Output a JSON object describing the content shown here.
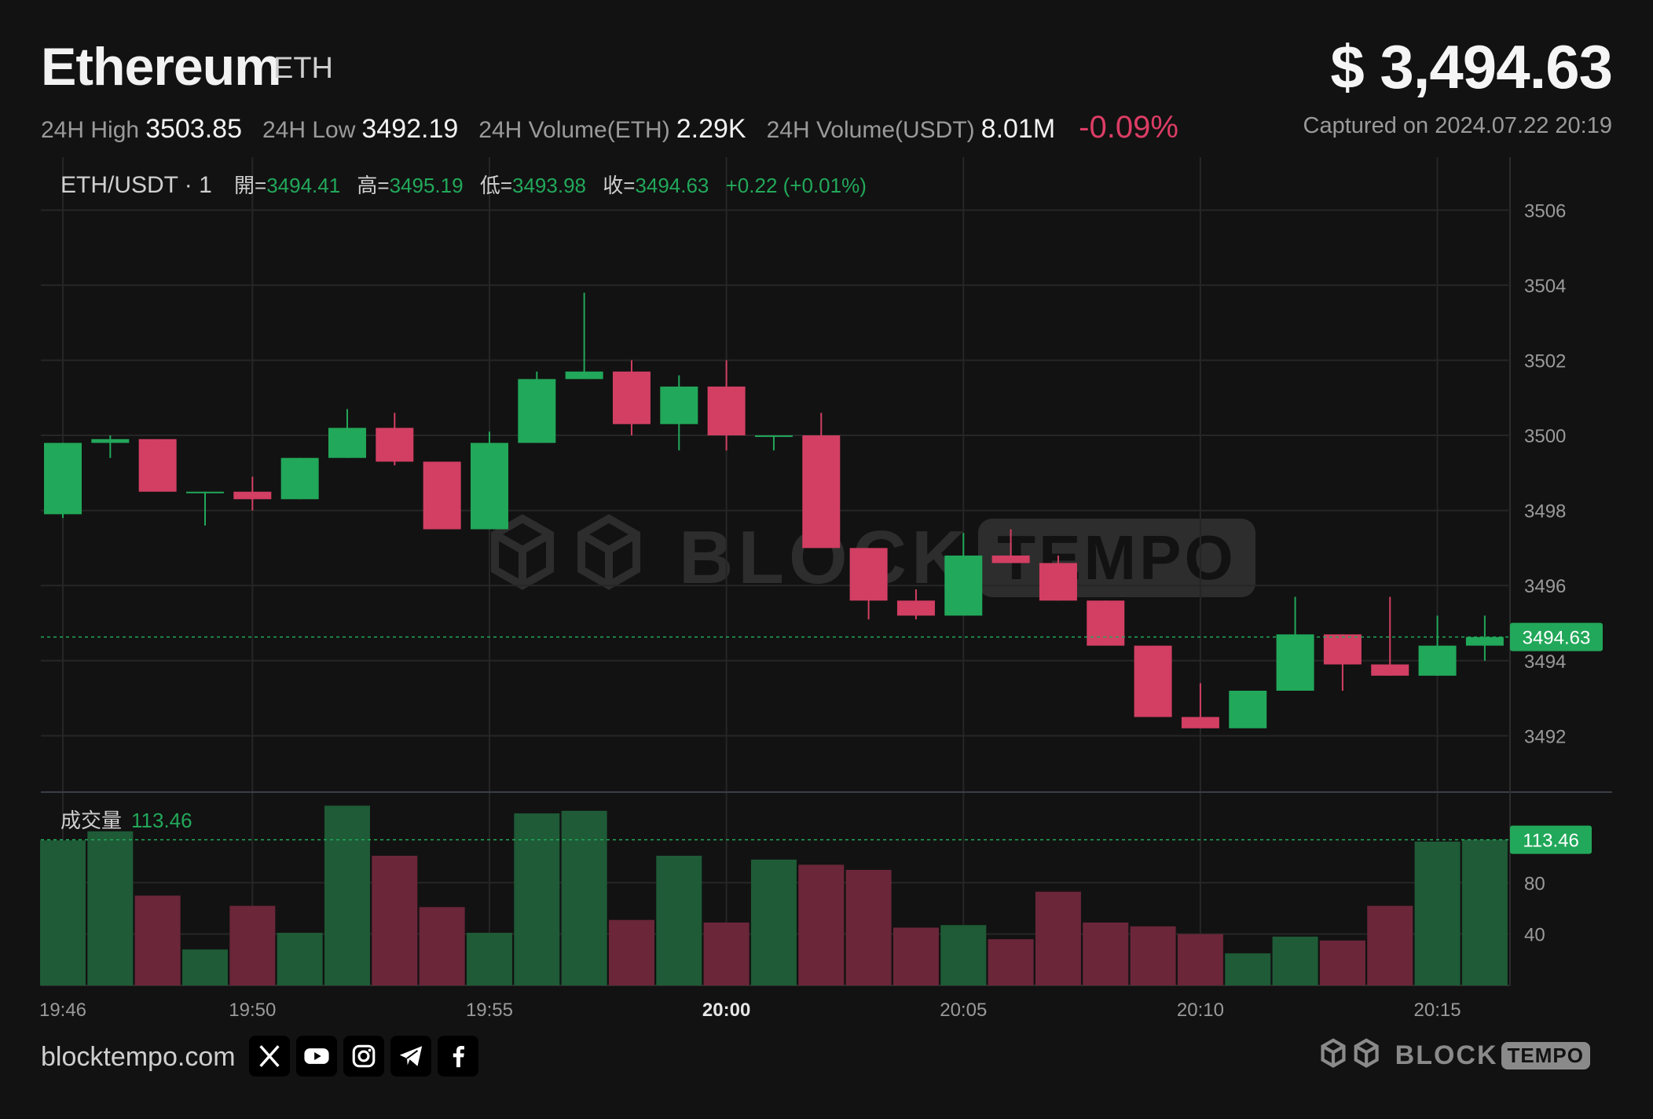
{
  "header": {
    "coin_name": "Ethereum",
    "coin_symbol": "ETH",
    "price": "$ 3,494.63",
    "captured": "Captured on 2024.07.22 20:19"
  },
  "stats": {
    "high_label": "24H High",
    "high_value": "3503.85",
    "low_label": "24H Low",
    "low_value": "3492.19",
    "vol_eth_label": "24H Volume(ETH)",
    "vol_eth_value": "2.29K",
    "vol_usdt_label": "24H Volume(USDT)",
    "vol_usdt_value": "8.01M",
    "change": "-0.09%"
  },
  "colors": {
    "up": "#22a85a",
    "down": "#d23f63",
    "vol_up": "#1e5b36",
    "vol_down": "#6b2639",
    "grid": "#262626",
    "axis_text": "#9a9a9a",
    "bg": "#121212"
  },
  "footer": {
    "site": "blocktempo.com",
    "icons": [
      "x-icon",
      "youtube-icon",
      "instagram-icon",
      "telegram-icon",
      "facebook-icon"
    ],
    "brand_block": "BLOCK",
    "brand_tempo": "TEMPO"
  },
  "chart_data": {
    "type": "candlestick",
    "pair_label": "ETH/USDT · 1",
    "ohlc_legend": {
      "open_label": "開=",
      "open": "3494.41",
      "high_label": "高=",
      "high": "3495.19",
      "low_label": "低=",
      "low": "3493.98",
      "close_label": "收=",
      "close": "3494.63",
      "change": "+0.22 (+0.01%)"
    },
    "volume_label": "成交量",
    "volume_value": "113.46",
    "last_price_label": "3494.63",
    "last_volume_label": "113.46",
    "price_ticks": [
      3506,
      3504,
      3502,
      3500,
      3498,
      3496,
      3494,
      3492
    ],
    "volume_ticks": [
      80,
      40
    ],
    "ylim": [
      3490.5,
      3507.2
    ],
    "volume_ylim": [
      0,
      142
    ],
    "time_ticks": [
      {
        "index": 0,
        "label": "19:46",
        "bold": false
      },
      {
        "index": 4,
        "label": "19:50",
        "bold": false
      },
      {
        "index": 9,
        "label": "19:55",
        "bold": false
      },
      {
        "index": 14,
        "label": "20:00",
        "bold": true
      },
      {
        "index": 19,
        "label": "20:05",
        "bold": false
      },
      {
        "index": 24,
        "label": "20:10",
        "bold": false
      },
      {
        "index": 29,
        "label": "20:15",
        "bold": false
      }
    ],
    "candles": [
      {
        "t": "19:46",
        "o": 3497.9,
        "h": 3499.8,
        "l": 3497.8,
        "c": 3499.8,
        "v": 113
      },
      {
        "t": "19:47",
        "o": 3499.8,
        "h": 3500.0,
        "l": 3499.4,
        "c": 3499.9,
        "v": 120
      },
      {
        "t": "19:48",
        "o": 3499.9,
        "h": 3499.9,
        "l": 3498.5,
        "c": 3498.5,
        "v": 70
      },
      {
        "t": "19:49",
        "o": 3498.5,
        "h": 3498.5,
        "l": 3497.6,
        "c": 3498.5,
        "v": 28
      },
      {
        "t": "19:50",
        "o": 3498.5,
        "h": 3498.9,
        "l": 3498.0,
        "c": 3498.3,
        "v": 62
      },
      {
        "t": "19:51",
        "o": 3498.3,
        "h": 3499.4,
        "l": 3498.3,
        "c": 3499.4,
        "v": 41
      },
      {
        "t": "19:52",
        "o": 3499.4,
        "h": 3500.7,
        "l": 3499.4,
        "c": 3500.2,
        "v": 140
      },
      {
        "t": "19:53",
        "o": 3500.2,
        "h": 3500.6,
        "l": 3499.2,
        "c": 3499.3,
        "v": 101
      },
      {
        "t": "19:54",
        "o": 3499.3,
        "h": 3499.3,
        "l": 3497.5,
        "c": 3497.5,
        "v": 61
      },
      {
        "t": "19:55",
        "o": 3497.5,
        "h": 3500.1,
        "l": 3497.5,
        "c": 3499.8,
        "v": 41
      },
      {
        "t": "19:56",
        "o": 3499.8,
        "h": 3501.7,
        "l": 3499.8,
        "c": 3501.5,
        "v": 134
      },
      {
        "t": "19:57",
        "o": 3501.5,
        "h": 3503.8,
        "l": 3501.5,
        "c": 3501.7,
        "v": 136
      },
      {
        "t": "19:58",
        "o": 3501.7,
        "h": 3502.0,
        "l": 3500.0,
        "c": 3500.3,
        "v": 51
      },
      {
        "t": "19:59",
        "o": 3500.3,
        "h": 3501.6,
        "l": 3499.6,
        "c": 3501.3,
        "v": 101
      },
      {
        "t": "20:00",
        "o": 3501.3,
        "h": 3502.0,
        "l": 3499.6,
        "c": 3500.0,
        "v": 49
      },
      {
        "t": "20:01",
        "o": 3500.0,
        "h": 3500.0,
        "l": 3499.6,
        "c": 3500.0,
        "v": 98
      },
      {
        "t": "20:02",
        "o": 3500.0,
        "h": 3500.6,
        "l": 3497.0,
        "c": 3497.0,
        "v": 94
      },
      {
        "t": "20:03",
        "o": 3497.0,
        "h": 3497.0,
        "l": 3495.1,
        "c": 3495.6,
        "v": 90
      },
      {
        "t": "20:04",
        "o": 3495.6,
        "h": 3495.9,
        "l": 3495.1,
        "c": 3495.2,
        "v": 45
      },
      {
        "t": "20:05",
        "o": 3495.2,
        "h": 3497.4,
        "l": 3495.2,
        "c": 3496.8,
        "v": 47
      },
      {
        "t": "20:06",
        "o": 3496.8,
        "h": 3497.5,
        "l": 3496.6,
        "c": 3496.6,
        "v": 36
      },
      {
        "t": "20:07",
        "o": 3496.6,
        "h": 3496.8,
        "l": 3495.6,
        "c": 3495.6,
        "v": 73
      },
      {
        "t": "20:08",
        "o": 3495.6,
        "h": 3495.6,
        "l": 3494.4,
        "c": 3494.4,
        "v": 49
      },
      {
        "t": "20:09",
        "o": 3494.4,
        "h": 3494.4,
        "l": 3492.5,
        "c": 3492.5,
        "v": 46
      },
      {
        "t": "20:10",
        "o": 3492.5,
        "h": 3493.4,
        "l": 3492.2,
        "c": 3492.2,
        "v": 40
      },
      {
        "t": "20:11",
        "o": 3492.2,
        "h": 3493.2,
        "l": 3492.2,
        "c": 3493.2,
        "v": 25
      },
      {
        "t": "20:12",
        "o": 3493.2,
        "h": 3495.7,
        "l": 3493.2,
        "c": 3494.7,
        "v": 38
      },
      {
        "t": "20:13",
        "o": 3494.7,
        "h": 3494.7,
        "l": 3493.2,
        "c": 3493.9,
        "v": 35
      },
      {
        "t": "20:14",
        "o": 3493.9,
        "h": 3495.7,
        "l": 3493.6,
        "c": 3493.6,
        "v": 62
      },
      {
        "t": "20:15",
        "o": 3493.6,
        "h": 3495.2,
        "l": 3493.6,
        "c": 3494.4,
        "v": 112
      },
      {
        "t": "20:16",
        "o": 3494.4,
        "h": 3495.2,
        "l": 3494.0,
        "c": 3494.63,
        "v": 113.46
      }
    ]
  }
}
